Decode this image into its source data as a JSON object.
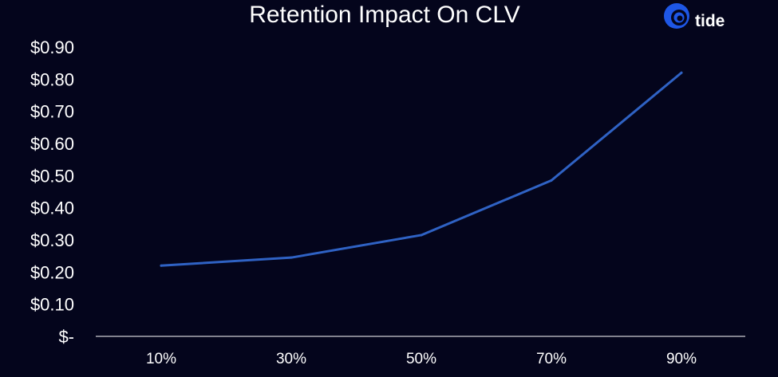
{
  "brand": {
    "name": "tide",
    "logo_color": "#1e57e6"
  },
  "chart_data": {
    "type": "line",
    "title": "Retention Impact On CLV",
    "xlabel": "",
    "ylabel": "",
    "categories": [
      "10%",
      "30%",
      "50%",
      "70%",
      "90%"
    ],
    "series": [
      {
        "values": [
          0.22,
          0.245,
          0.315,
          0.485,
          0.82
        ],
        "color": "#2f62c4"
      }
    ],
    "ylim": [
      0,
      0.9
    ],
    "yticks": [
      0,
      0.1,
      0.2,
      0.3,
      0.4,
      0.5,
      0.6,
      0.7,
      0.8,
      0.9
    ],
    "ytick_labels": [
      "$-",
      "$0.10",
      "$0.20",
      "$0.30",
      "$0.40",
      "$0.50",
      "$0.60",
      "$0.70",
      "$0.80",
      "$0.90"
    ],
    "grid": false,
    "legend": "none",
    "colors": {
      "background": "#04051c",
      "axis": "#ffffff",
      "text": "#ffffff"
    }
  }
}
